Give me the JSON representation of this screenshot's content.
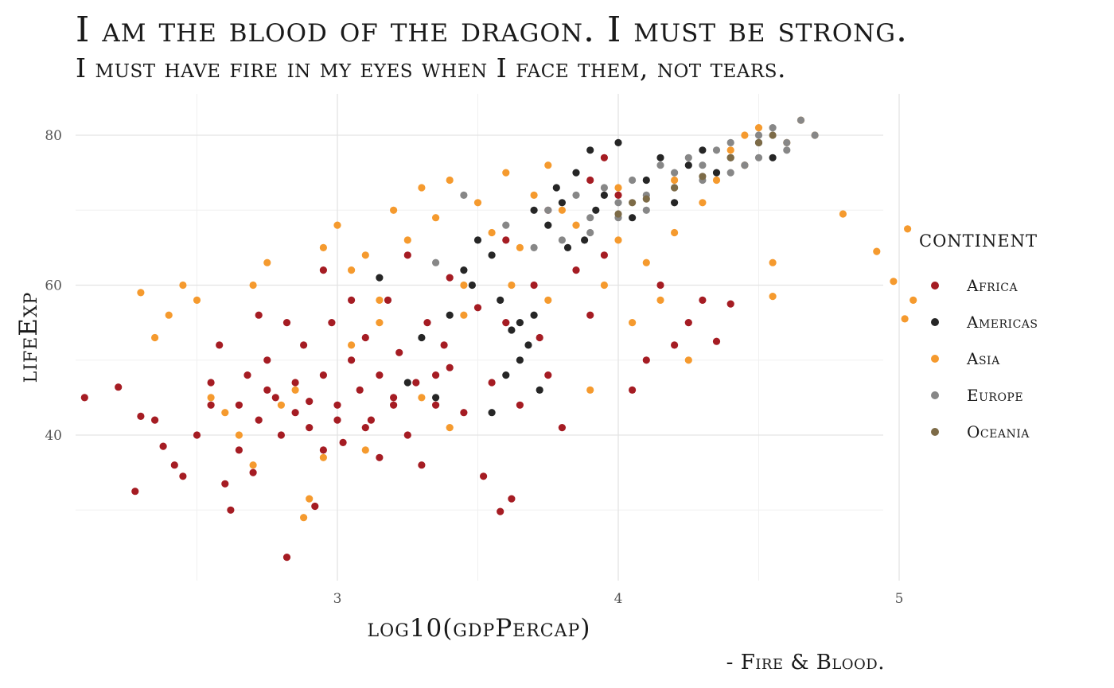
{
  "chart_data": {
    "type": "scatter",
    "title": "I am the blood of the dragon. I must be strong.",
    "subtitle": "I must have fire in my eyes when I face them, not tears.",
    "caption": "- Fire & Blood.",
    "xlabel": "log10(gdpPercap)",
    "ylabel": "lifeExp",
    "xlim": [
      2.0,
      5.2
    ],
    "ylim": [
      22,
      87
    ],
    "xticks": [
      3,
      4,
      5
    ],
    "yticks": [
      40,
      60,
      80
    ],
    "grid": true,
    "legend_position": "right",
    "legend_title": "continent",
    "series": [
      {
        "name": "Africa",
        "color": "#a51c23",
        "points": [
          [
            2.1,
            45
          ],
          [
            2.22,
            46.4
          ],
          [
            2.28,
            32.5
          ],
          [
            2.3,
            42.5
          ],
          [
            2.35,
            42
          ],
          [
            2.38,
            38.5
          ],
          [
            2.42,
            36
          ],
          [
            2.45,
            34.5
          ],
          [
            2.5,
            40
          ],
          [
            2.55,
            44
          ],
          [
            2.55,
            47
          ],
          [
            2.6,
            33.5
          ],
          [
            2.62,
            30
          ],
          [
            2.65,
            38
          ],
          [
            2.7,
            35
          ],
          [
            2.72,
            42
          ],
          [
            2.75,
            50
          ],
          [
            2.78,
            45
          ],
          [
            2.8,
            40
          ],
          [
            2.82,
            23.7
          ],
          [
            2.82,
            55
          ],
          [
            2.85,
            47
          ],
          [
            2.88,
            52
          ],
          [
            2.9,
            41
          ],
          [
            2.92,
            30.5
          ],
          [
            2.95,
            48
          ],
          [
            2.98,
            55
          ],
          [
            3.0,
            44
          ],
          [
            3.02,
            39
          ],
          [
            3.05,
            50
          ],
          [
            3.08,
            46
          ],
          [
            3.1,
            53
          ],
          [
            3.12,
            42
          ],
          [
            3.15,
            48
          ],
          [
            3.18,
            58
          ],
          [
            3.2,
            45
          ],
          [
            3.22,
            51
          ],
          [
            3.25,
            40
          ],
          [
            3.28,
            47
          ],
          [
            3.3,
            36
          ],
          [
            3.32,
            55
          ],
          [
            3.35,
            44
          ],
          [
            3.38,
            52
          ],
          [
            3.4,
            49
          ],
          [
            3.45,
            43
          ],
          [
            3.5,
            57
          ],
          [
            3.52,
            34.5
          ],
          [
            3.55,
            47
          ],
          [
            3.58,
            29.8
          ],
          [
            3.6,
            55
          ],
          [
            3.62,
            31.5
          ],
          [
            3.65,
            44
          ],
          [
            3.7,
            60
          ],
          [
            3.72,
            53
          ],
          [
            3.75,
            48
          ],
          [
            3.8,
            41
          ],
          [
            3.85,
            62
          ],
          [
            3.9,
            56
          ],
          [
            3.95,
            64
          ],
          [
            4.0,
            72
          ],
          [
            4.05,
            46
          ],
          [
            4.1,
            50
          ],
          [
            4.15,
            60
          ],
          [
            4.2,
            52
          ],
          [
            4.25,
            55
          ],
          [
            4.3,
            58
          ],
          [
            4.35,
            52.5
          ],
          [
            4.4,
            57.5
          ],
          [
            2.68,
            48
          ],
          [
            2.58,
            52
          ],
          [
            2.72,
            56
          ],
          [
            2.95,
            62
          ],
          [
            3.05,
            58
          ],
          [
            3.25,
            64
          ],
          [
            3.4,
            61
          ],
          [
            3.6,
            66
          ],
          [
            3.75,
            70
          ],
          [
            3.9,
            74
          ],
          [
            3.95,
            77
          ],
          [
            2.9,
            44.5
          ],
          [
            3.0,
            42
          ],
          [
            2.85,
            43
          ],
          [
            3.1,
            41
          ],
          [
            2.75,
            46
          ],
          [
            2.65,
            44
          ],
          [
            2.95,
            38
          ],
          [
            3.15,
            37
          ],
          [
            3.2,
            44
          ],
          [
            3.35,
            48
          ]
        ]
      },
      {
        "name": "Americas",
        "color": "#262626",
        "points": [
          [
            3.15,
            61
          ],
          [
            3.3,
            53
          ],
          [
            3.4,
            56
          ],
          [
            3.45,
            62
          ],
          [
            3.5,
            66
          ],
          [
            3.55,
            64
          ],
          [
            3.58,
            58
          ],
          [
            3.6,
            48
          ],
          [
            3.65,
            55
          ],
          [
            3.68,
            52
          ],
          [
            3.7,
            70
          ],
          [
            3.72,
            46
          ],
          [
            3.75,
            68
          ],
          [
            3.78,
            73
          ],
          [
            3.8,
            71
          ],
          [
            3.85,
            75
          ],
          [
            3.88,
            66
          ],
          [
            3.9,
            78
          ],
          [
            3.95,
            72
          ],
          [
            4.0,
            79
          ],
          [
            4.05,
            69
          ],
          [
            4.1,
            74
          ],
          [
            4.15,
            77
          ],
          [
            4.2,
            71
          ],
          [
            4.25,
            76
          ],
          [
            4.3,
            78
          ],
          [
            4.35,
            75
          ],
          [
            4.4,
            77
          ],
          [
            4.45,
            76
          ],
          [
            4.5,
            79
          ],
          [
            4.55,
            77
          ],
          [
            3.55,
            43
          ],
          [
            3.65,
            50
          ],
          [
            3.35,
            45
          ],
          [
            3.25,
            47
          ],
          [
            3.48,
            60
          ],
          [
            3.62,
            54
          ],
          [
            3.7,
            56
          ],
          [
            3.82,
            65
          ],
          [
            3.92,
            70
          ]
        ]
      },
      {
        "name": "Asia",
        "color": "#f59a2e",
        "points": [
          [
            2.3,
            59
          ],
          [
            2.35,
            53
          ],
          [
            2.4,
            56
          ],
          [
            2.45,
            60
          ],
          [
            2.5,
            58
          ],
          [
            2.55,
            45
          ],
          [
            2.6,
            43
          ],
          [
            2.7,
            60
          ],
          [
            2.75,
            63
          ],
          [
            2.8,
            44
          ],
          [
            2.85,
            46
          ],
          [
            2.88,
            29
          ],
          [
            2.9,
            31.5
          ],
          [
            2.95,
            65
          ],
          [
            3.0,
            68
          ],
          [
            3.05,
            62
          ],
          [
            3.1,
            64
          ],
          [
            3.15,
            58
          ],
          [
            3.2,
            70
          ],
          [
            3.25,
            66
          ],
          [
            3.3,
            73
          ],
          [
            3.35,
            69
          ],
          [
            3.4,
            74
          ],
          [
            3.45,
            60
          ],
          [
            3.5,
            71
          ],
          [
            3.55,
            67
          ],
          [
            3.6,
            75
          ],
          [
            3.65,
            65
          ],
          [
            3.7,
            72
          ],
          [
            3.75,
            76
          ],
          [
            3.8,
            70
          ],
          [
            3.85,
            68
          ],
          [
            3.9,
            46
          ],
          [
            3.95,
            60
          ],
          [
            4.0,
            73
          ],
          [
            4.05,
            55
          ],
          [
            4.1,
            63
          ],
          [
            4.15,
            58
          ],
          [
            4.2,
            67
          ],
          [
            4.25,
            50
          ],
          [
            4.3,
            71
          ],
          [
            4.35,
            74
          ],
          [
            4.4,
            78
          ],
          [
            4.45,
            80
          ],
          [
            4.5,
            81
          ],
          [
            4.55,
            63
          ],
          [
            4.6,
            79
          ],
          [
            4.65,
            82
          ],
          [
            4.7,
            80
          ],
          [
            4.8,
            69.5
          ],
          [
            4.92,
            64.5
          ],
          [
            4.98,
            60.5
          ],
          [
            5.02,
            55.5
          ],
          [
            5.03,
            67.5
          ],
          [
            5.05,
            58
          ],
          [
            4.55,
            58.5
          ],
          [
            3.1,
            38
          ],
          [
            2.95,
            37
          ],
          [
            2.7,
            36
          ],
          [
            2.65,
            40
          ],
          [
            3.4,
            41
          ],
          [
            3.3,
            45
          ],
          [
            3.05,
            52
          ],
          [
            3.15,
            55
          ],
          [
            3.45,
            56
          ],
          [
            3.62,
            60
          ],
          [
            3.75,
            58
          ],
          [
            4.0,
            66
          ],
          [
            4.2,
            74
          ],
          [
            4.45,
            76
          ]
        ]
      },
      {
        "name": "Europe",
        "color": "#878787",
        "points": [
          [
            3.35,
            63
          ],
          [
            3.45,
            72
          ],
          [
            3.6,
            68
          ],
          [
            3.7,
            65
          ],
          [
            3.75,
            70
          ],
          [
            3.8,
            66
          ],
          [
            3.85,
            72
          ],
          [
            3.9,
            69
          ],
          [
            3.95,
            73
          ],
          [
            4.0,
            71
          ],
          [
            4.05,
            74
          ],
          [
            4.1,
            72
          ],
          [
            4.15,
            76
          ],
          [
            4.2,
            75
          ],
          [
            4.25,
            77
          ],
          [
            4.3,
            74
          ],
          [
            4.35,
            78
          ],
          [
            4.4,
            79
          ],
          [
            4.45,
            76
          ],
          [
            4.5,
            80
          ],
          [
            4.55,
            81
          ],
          [
            4.6,
            79
          ],
          [
            4.65,
            82
          ],
          [
            4.7,
            80
          ],
          [
            4.1,
            70
          ],
          [
            4.0,
            69
          ],
          [
            3.9,
            67
          ],
          [
            4.2,
            73
          ],
          [
            4.3,
            76
          ],
          [
            4.4,
            75
          ],
          [
            4.5,
            77
          ],
          [
            4.6,
            78
          ]
        ]
      },
      {
        "name": "Oceania",
        "color": "#7d6b47",
        "points": [
          [
            4.0,
            69.5
          ],
          [
            4.05,
            71
          ],
          [
            4.1,
            71.5
          ],
          [
            4.2,
            73
          ],
          [
            4.3,
            74.5
          ],
          [
            4.4,
            77
          ],
          [
            4.5,
            79
          ],
          [
            4.55,
            80
          ]
        ]
      }
    ]
  }
}
